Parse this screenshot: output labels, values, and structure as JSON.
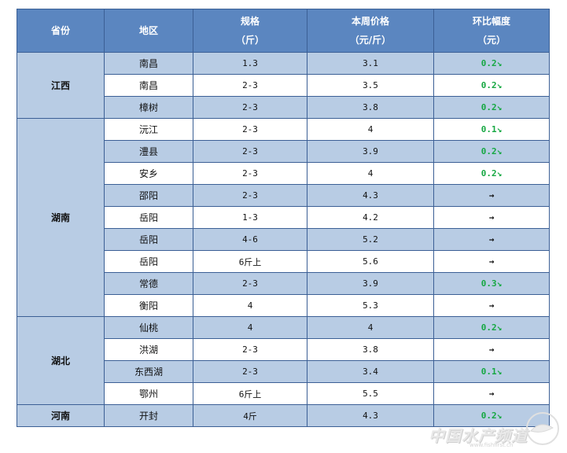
{
  "header": {
    "province": "省份",
    "region": "地区",
    "spec_l1": "规格",
    "spec_l2": "（斤）",
    "price_l1": "本周价格",
    "price_l2": "（元/斤）",
    "change_l1": "环比幅度",
    "change_l2": "（元）"
  },
  "groups": [
    {
      "province": "江西",
      "rows": [
        {
          "region": "南昌",
          "spec": "1.3",
          "price": "3.1",
          "change": "0.2↘",
          "trend": "down"
        },
        {
          "region": "南昌",
          "spec": "2-3",
          "price": "3.5",
          "change": "0.2↘",
          "trend": "down"
        },
        {
          "region": "樟树",
          "spec": "2-3",
          "price": "3.8",
          "change": "0.2↘",
          "trend": "down"
        }
      ]
    },
    {
      "province": "湖南",
      "rows": [
        {
          "region": "沅江",
          "spec": "2-3",
          "price": "4",
          "change": "0.1↘",
          "trend": "down"
        },
        {
          "region": "澧县",
          "spec": "2-3",
          "price": "3.9",
          "change": "0.2↘",
          "trend": "down"
        },
        {
          "region": "安乡",
          "spec": "2-3",
          "price": "4",
          "change": "0.2↘",
          "trend": "down"
        },
        {
          "region": "邵阳",
          "spec": "2-3",
          "price": "4.3",
          "change": "→",
          "trend": "flat"
        },
        {
          "region": "岳阳",
          "spec": "1-3",
          "price": "4.2",
          "change": "→",
          "trend": "flat"
        },
        {
          "region": "岳阳",
          "spec": "4-6",
          "price": "5.2",
          "change": "→",
          "trend": "flat"
        },
        {
          "region": "岳阳",
          "spec": "6斤上",
          "price": "5.6",
          "change": "→",
          "trend": "flat"
        },
        {
          "region": "常德",
          "spec": "2-3",
          "price": "3.9",
          "change": "0.3↘",
          "trend": "down"
        },
        {
          "region": "衡阳",
          "spec": "4",
          "price": "5.3",
          "change": "→",
          "trend": "flat"
        }
      ]
    },
    {
      "province": "湖北",
      "rows": [
        {
          "region": "仙桃",
          "spec": "4",
          "price": "4",
          "change": "0.2↘",
          "trend": "down"
        },
        {
          "region": "洪湖",
          "spec": "2-3",
          "price": "3.8",
          "change": "→",
          "trend": "flat"
        },
        {
          "region": "东西湖",
          "spec": "2-3",
          "price": "3.4",
          "change": "0.1↘",
          "trend": "down"
        },
        {
          "region": "鄂州",
          "spec": "6斤上",
          "price": "5.5",
          "change": "→",
          "trend": "flat"
        }
      ]
    },
    {
      "province": "河南",
      "rows": [
        {
          "region": "开封",
          "spec": "4斤",
          "price": "4.3",
          "change": "0.2↘",
          "trend": "down"
        }
      ]
    }
  ],
  "watermark": {
    "text": "中国水产频道",
    "url": "www.fishfirst.cn"
  },
  "colors": {
    "header_bg": "#5b86c0",
    "stripe_bg": "#b8cce4",
    "down_green": "#17a843",
    "border": "#3b5f95"
  }
}
